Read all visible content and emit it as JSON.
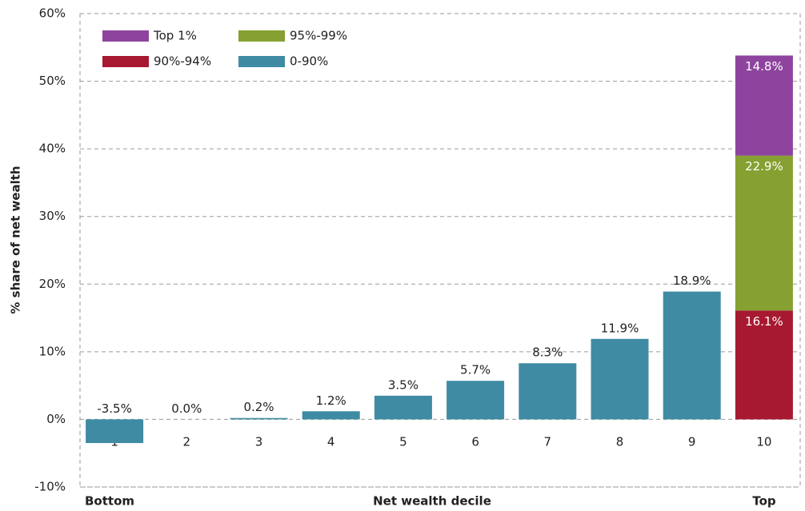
{
  "chart_data": {
    "type": "bar",
    "stacked": true,
    "x_label": "Net wealth decile",
    "y_label": "% share of net wealth",
    "annotations": [
      "Bottom",
      "Top"
    ],
    "categories": [
      "1",
      "2",
      "3",
      "4",
      "5",
      "6",
      "7",
      "8",
      "9",
      "10"
    ],
    "series": [
      {
        "name": "0-90%",
        "color": "#3f8ba4",
        "values": [
          -3.5,
          0.0,
          0.2,
          1.2,
          3.5,
          5.7,
          8.3,
          11.9,
          18.9,
          null
        ],
        "value_labels": [
          "-3.5%",
          "0.0%",
          "0.2%",
          "1.2%",
          "3.5%",
          "5.7%",
          "8.3%",
          "11.9%",
          "18.9%",
          null
        ]
      },
      {
        "name": "90%-94%",
        "color": "#a71930",
        "values": [
          null,
          null,
          null,
          null,
          null,
          null,
          null,
          null,
          null,
          16.1
        ],
        "value_labels": [
          null,
          null,
          null,
          null,
          null,
          null,
          null,
          null,
          null,
          "16.1%"
        ]
      },
      {
        "name": "95%-99%",
        "color": "#86a031",
        "values": [
          null,
          null,
          null,
          null,
          null,
          null,
          null,
          null,
          null,
          22.9
        ],
        "value_labels": [
          null,
          null,
          null,
          null,
          null,
          null,
          null,
          null,
          null,
          "22.9%"
        ]
      },
      {
        "name": "Top 1%",
        "color": "#8e449e",
        "values": [
          null,
          null,
          null,
          null,
          null,
          null,
          null,
          null,
          null,
          14.8
        ],
        "value_labels": [
          null,
          null,
          null,
          null,
          null,
          null,
          null,
          null,
          null,
          "14.8%"
        ]
      }
    ],
    "ylim": [
      -10,
      60
    ],
    "yticks": [
      {
        "value": -10,
        "label": "-10%"
      },
      {
        "value": 0,
        "label": "0%"
      },
      {
        "value": 10,
        "label": "10%"
      },
      {
        "value": 20,
        "label": "20%"
      },
      {
        "value": 30,
        "label": "30%"
      },
      {
        "value": 40,
        "label": "40%"
      },
      {
        "value": 50,
        "label": "50%"
      },
      {
        "value": 60,
        "label": "60%"
      }
    ],
    "grid": true,
    "legend": "upper left"
  }
}
